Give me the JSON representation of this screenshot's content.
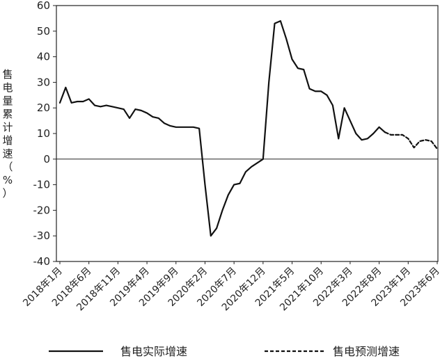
{
  "chart_data": {
    "type": "line",
    "ylabel_chars": [
      "售",
      "电",
      "量",
      "累",
      "计",
      "增",
      "速",
      "（",
      "%",
      "）"
    ],
    "ylim": [
      -40,
      60
    ],
    "y_ticks": [
      "60",
      "50",
      "40",
      "30",
      "20",
      "10",
      "0",
      "-10",
      "-20",
      "-30",
      "-40"
    ],
    "x_ticks": [
      "2018年1月",
      "2018年6月",
      "2018年11月",
      "2019年4月",
      "2019年9月",
      "2020年2月",
      "2020年7月",
      "2020年12月",
      "2021年5月",
      "2021年10月",
      "2022年3月",
      "2022年8月",
      "2023年1月",
      "2023年6月"
    ],
    "grid": false,
    "legend_position": "bottom",
    "series": [
      {
        "name": "售电实际增速",
        "style": "solid",
        "color": "#111111",
        "points": [
          [
            "2018-01",
            22
          ],
          [
            "2018-02",
            28
          ],
          [
            "2018-03",
            22
          ],
          [
            "2018-04",
            22.5
          ],
          [
            "2018-05",
            22.5
          ],
          [
            "2018-06",
            23.5
          ],
          [
            "2018-07",
            21
          ],
          [
            "2018-08",
            20.5
          ],
          [
            "2018-09",
            21
          ],
          [
            "2018-10",
            20.5
          ],
          [
            "2018-11",
            20
          ],
          [
            "2018-12",
            19.5
          ],
          [
            "2019-01",
            16
          ],
          [
            "2019-02",
            19.5
          ],
          [
            "2019-03",
            19
          ],
          [
            "2019-04",
            18
          ],
          [
            "2019-05",
            16.5
          ],
          [
            "2019-06",
            16
          ],
          [
            "2019-07",
            14
          ],
          [
            "2019-08",
            13
          ],
          [
            "2019-09",
            12.5
          ],
          [
            "2019-10",
            12.5
          ],
          [
            "2019-11",
            12.5
          ],
          [
            "2019-12",
            12.5
          ],
          [
            "2020-01",
            12
          ],
          [
            "2020-02",
            -10
          ],
          [
            "2020-03",
            -30
          ],
          [
            "2020-04",
            -27
          ],
          [
            "2020-05",
            -20
          ],
          [
            "2020-06",
            -14
          ],
          [
            "2020-07",
            -10
          ],
          [
            "2020-08",
            -9.5
          ],
          [
            "2020-09",
            -5
          ],
          [
            "2020-10",
            -3
          ],
          [
            "2020-11",
            -1.5
          ],
          [
            "2020-12",
            0
          ],
          [
            "2021-01",
            30
          ],
          [
            "2021-02",
            53
          ],
          [
            "2021-03",
            54
          ],
          [
            "2021-04",
            47
          ],
          [
            "2021-05",
            39
          ],
          [
            "2021-06",
            35.5
          ],
          [
            "2021-07",
            35
          ],
          [
            "2021-08",
            27.5
          ],
          [
            "2021-09",
            26.5
          ],
          [
            "2021-10",
            26.5
          ],
          [
            "2021-11",
            25
          ],
          [
            "2021-12",
            21
          ],
          [
            "2022-01",
            8
          ],
          [
            "2022-02",
            20
          ],
          [
            "2022-03",
            15
          ],
          [
            "2022-04",
            10
          ],
          [
            "2022-05",
            7.5
          ],
          [
            "2022-06",
            8
          ],
          [
            "2022-07",
            10
          ],
          [
            "2022-08",
            12.5
          ],
          [
            "2022-09",
            10.5
          ]
        ]
      },
      {
        "name": "售电预测增速",
        "style": "dashed",
        "color": "#111111",
        "points": [
          [
            "2022-09",
            10.5
          ],
          [
            "2022-10",
            9.5
          ],
          [
            "2022-11",
            9.5
          ],
          [
            "2022-12",
            9.5
          ],
          [
            "2023-01",
            8
          ],
          [
            "2023-02",
            4.5
          ],
          [
            "2023-03",
            7
          ],
          [
            "2023-04",
            7.5
          ],
          [
            "2023-05",
            7
          ],
          [
            "2023-06",
            4
          ]
        ]
      }
    ]
  }
}
